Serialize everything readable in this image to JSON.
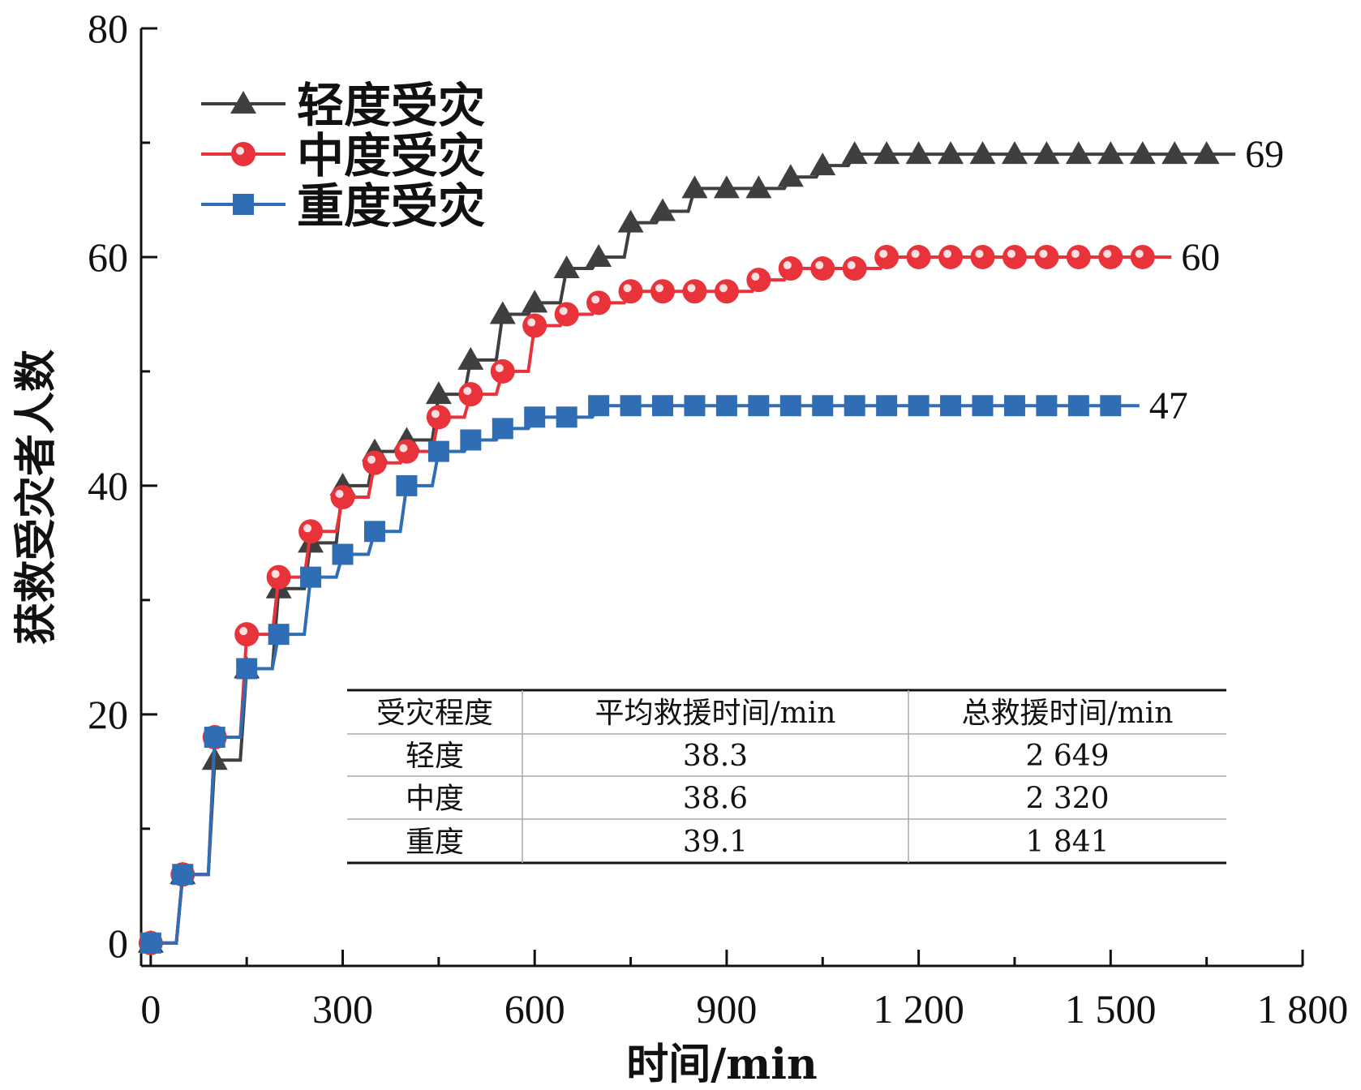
{
  "chart_data": {
    "type": "line",
    "xlabel": "时间/min",
    "ylabel": "获救受灾者人数",
    "xlim": [
      -15,
      1800
    ],
    "ylim": [
      -2,
      80
    ],
    "x_ticks": [
      0,
      300,
      600,
      900,
      1200,
      1500,
      1800
    ],
    "x_tick_labels": [
      "0",
      "300",
      "600",
      "900",
      "1 200",
      "1 500",
      "1 800"
    ],
    "y_ticks": [
      0,
      20,
      40,
      60,
      80
    ],
    "y_tick_labels": [
      "0",
      "20",
      "40",
      "60",
      "80"
    ],
    "grid": false,
    "legend_position": "top-left",
    "series": [
      {
        "name": "轻度受灾",
        "color": "#3f3f3f",
        "marker": "triangle",
        "end_label": "69",
        "x": [
          0,
          50,
          100,
          150,
          200,
          250,
          300,
          350,
          400,
          450,
          500,
          550,
          600,
          650,
          700,
          750,
          800,
          850,
          900,
          950,
          1000,
          1050,
          1100,
          1150,
          1200,
          1250,
          1300,
          1350,
          1400,
          1450,
          1500,
          1550,
          1600,
          1650
        ],
        "values": [
          0,
          6,
          16,
          24,
          31,
          35,
          40,
          43,
          44,
          48,
          51,
          55,
          56,
          59,
          60,
          63,
          64,
          66,
          66,
          66,
          67,
          68,
          69,
          69,
          69,
          69,
          69,
          69,
          69,
          69,
          69,
          69,
          69,
          69
        ]
      },
      {
        "name": "中度受灾",
        "color": "#e8333a",
        "marker": "circle",
        "end_label": "60",
        "x": [
          0,
          50,
          100,
          150,
          200,
          250,
          300,
          350,
          400,
          450,
          500,
          550,
          600,
          650,
          700,
          750,
          800,
          850,
          900,
          950,
          1000,
          1050,
          1100,
          1150,
          1200,
          1250,
          1300,
          1350,
          1400,
          1450,
          1500,
          1550
        ],
        "values": [
          0,
          6,
          18,
          27,
          32,
          36,
          39,
          42,
          43,
          46,
          48,
          50,
          54,
          55,
          56,
          57,
          57,
          57,
          57,
          58,
          59,
          59,
          59,
          60,
          60,
          60,
          60,
          60,
          60,
          60,
          60,
          60
        ]
      },
      {
        "name": "重度受灾",
        "color": "#2f6db5",
        "marker": "square",
        "end_label": "47",
        "x": [
          0,
          50,
          100,
          150,
          200,
          250,
          300,
          350,
          400,
          450,
          500,
          550,
          600,
          650,
          700,
          750,
          800,
          850,
          900,
          950,
          1000,
          1050,
          1100,
          1150,
          1200,
          1250,
          1300,
          1350,
          1400,
          1450,
          1500
        ],
        "values": [
          0,
          6,
          18,
          24,
          27,
          32,
          34,
          36,
          40,
          43,
          44,
          45,
          46,
          46,
          47,
          47,
          47,
          47,
          47,
          47,
          47,
          47,
          47,
          47,
          47,
          47,
          47,
          47,
          47,
          47,
          47
        ]
      }
    ],
    "table": {
      "headers": [
        "受灾程度",
        "平均救援时间/min",
        "总救援时间/min"
      ],
      "rows": [
        [
          "轻度",
          "38.3",
          "2 649"
        ],
        [
          "中度",
          "38.6",
          "2 320"
        ],
        [
          "重度",
          "39.1",
          "1 841"
        ]
      ]
    }
  }
}
